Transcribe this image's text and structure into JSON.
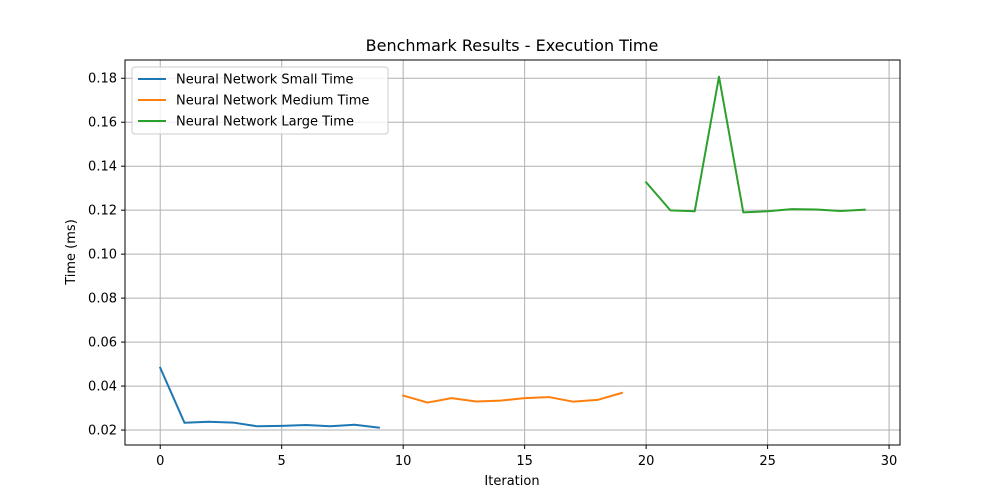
{
  "chart_data": {
    "type": "line",
    "title": "Benchmark Results - Execution Time",
    "xlabel": "Iteration",
    "ylabel": "Time (ms)",
    "xlim": [
      -1.45,
      30.45
    ],
    "ylim": [
      0.0132,
      0.1883
    ],
    "xticks": [
      0,
      5,
      10,
      15,
      20,
      25,
      30
    ],
    "yticks": [
      0.02,
      0.04,
      0.06,
      0.08,
      0.1,
      0.12,
      0.14,
      0.16,
      0.18
    ],
    "xtick_labels": [
      "0",
      "5",
      "10",
      "15",
      "20",
      "25",
      "30"
    ],
    "ytick_labels": [
      "0.02",
      "0.04",
      "0.06",
      "0.08",
      "0.10",
      "0.12",
      "0.14",
      "0.16",
      "0.18"
    ],
    "grid": true,
    "legend_position": "top-left",
    "series": [
      {
        "name": "Neural Network Small Time",
        "color": "#1f77b4",
        "x": [
          0,
          1,
          2,
          3,
          4,
          5,
          6,
          7,
          8,
          9
        ],
        "values": [
          0.0483,
          0.0233,
          0.0238,
          0.0234,
          0.0217,
          0.0219,
          0.0223,
          0.0217,
          0.0224,
          0.0211
        ]
      },
      {
        "name": "Neural Network Medium Time",
        "color": "#ff7f0e",
        "x": [
          10,
          11,
          12,
          13,
          14,
          15,
          16,
          17,
          18,
          19
        ],
        "values": [
          0.0357,
          0.0325,
          0.0345,
          0.033,
          0.0334,
          0.0345,
          0.035,
          0.0329,
          0.0337,
          0.0369
        ]
      },
      {
        "name": "Neural Network Large Time",
        "color": "#2ca02c",
        "x": [
          20,
          21,
          22,
          23,
          24,
          25,
          26,
          27,
          28,
          29
        ],
        "values": [
          0.1327,
          0.1199,
          0.1195,
          0.1807,
          0.119,
          0.1195,
          0.1205,
          0.1203,
          0.1196,
          0.1202
        ]
      }
    ]
  }
}
